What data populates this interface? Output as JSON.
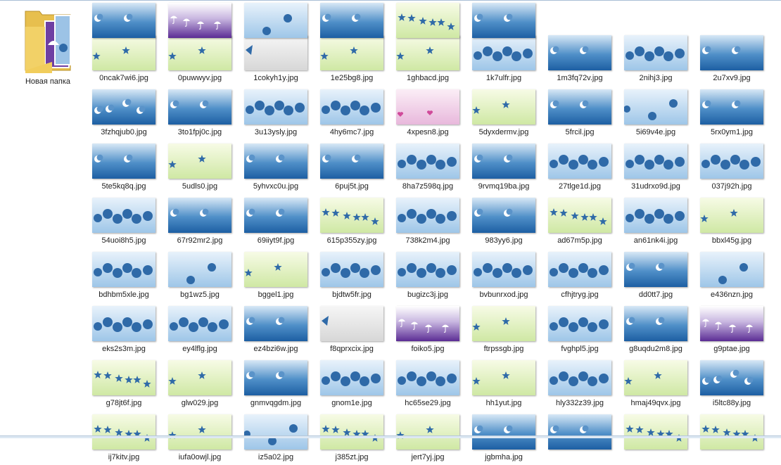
{
  "folder": {
    "label": "Новая папка",
    "icon": "folder-icon"
  },
  "colors": {
    "shape_blue": "#2f6aa8",
    "white": "#ffffff",
    "green_bg": "#cfe8a4",
    "light_blue_bg": "#9ec6e8",
    "dark_blue_bg": "#1d5fa3",
    "purple_bg": "#5b2d94",
    "pink_bg": "#e8b8dc",
    "gray_bg": "#d7d7d7",
    "pink_heart": "#d04a9a"
  },
  "files": [
    {
      "name": "0ncak7wi6.jpg",
      "bg": "green",
      "motif": "stars2"
    },
    {
      "name": "0puwwyv.jpg",
      "bg": "green",
      "motif": "stars2"
    },
    {
      "name": "1cokyh1y.jpg",
      "bg": "gray",
      "motif": "triangle"
    },
    {
      "name": "1e25bg8.jpg",
      "bg": "green",
      "motif": "stars2"
    },
    {
      "name": "1ghbacd.jpg",
      "bg": "green",
      "motif": "stars2"
    },
    {
      "name": "1k7ulfr.jpg",
      "bg": "lightblue",
      "motif": "circles"
    },
    {
      "name": "1m3fq72v.jpg",
      "bg": "darkblue",
      "motif": "moons2"
    },
    {
      "name": "2nihj3.jpg",
      "bg": "lightblue",
      "motif": "circles"
    },
    {
      "name": "2u7xv9.jpg",
      "bg": "darkblue",
      "motif": "moons2"
    },
    {
      "name": "3fzhqjub0.jpg",
      "bg": "darkblue",
      "motif": "moons4"
    },
    {
      "name": "3to1fpj0c.jpg",
      "bg": "darkblue",
      "motif": "moons2"
    },
    {
      "name": "3u13ysly.jpg",
      "bg": "lightblue",
      "motif": "circles"
    },
    {
      "name": "4hy6mc7.jpg",
      "bg": "lightblue",
      "motif": "circles"
    },
    {
      "name": "4xpesn8.jpg",
      "bg": "pink",
      "motif": "hearts"
    },
    {
      "name": "5dyxdermv.jpg",
      "bg": "green",
      "motif": "stars2"
    },
    {
      "name": "5frcil.jpg",
      "bg": "darkblue",
      "motif": "moons2"
    },
    {
      "name": "5i69v4e.jpg",
      "bg": "lightblue",
      "motif": "circles3"
    },
    {
      "name": "5rx0ym1.jpg",
      "bg": "darkblue",
      "motif": "moons2"
    },
    {
      "name": "5te5kq8q.jpg",
      "bg": "darkblue",
      "motif": "moons2"
    },
    {
      "name": "5udls0.jpg",
      "bg": "green",
      "motif": "stars2"
    },
    {
      "name": "5yhvxc0u.jpg",
      "bg": "darkblue",
      "motif": "moons2"
    },
    {
      "name": "6puj5t.jpg",
      "bg": "darkblue",
      "motif": "moons2"
    },
    {
      "name": "8ha7z598q.jpg",
      "bg": "lightblue",
      "motif": "circles"
    },
    {
      "name": "9rvmq19ba.jpg",
      "bg": "darkblue",
      "motif": "moons2"
    },
    {
      "name": "27tlge1d.jpg",
      "bg": "lightblue",
      "motif": "circles"
    },
    {
      "name": "31udrxo9d.jpg",
      "bg": "lightblue",
      "motif": "circles"
    },
    {
      "name": "037j92h.jpg",
      "bg": "lightblue",
      "motif": "circles"
    },
    {
      "name": "54uoi8h5.jpg",
      "bg": "lightblue",
      "motif": "circles"
    },
    {
      "name": "67r92mr2.jpg",
      "bg": "darkblue",
      "motif": "moons2"
    },
    {
      "name": "69iiyt9f.jpg",
      "bg": "darkblue",
      "motif": "moons2"
    },
    {
      "name": "615p355zy.jpg",
      "bg": "green",
      "motif": "stars6"
    },
    {
      "name": "738k2m4.jpg",
      "bg": "lightblue",
      "motif": "circles"
    },
    {
      "name": "983yy6.jpg",
      "bg": "darkblue",
      "motif": "moons2"
    },
    {
      "name": "ad67m5p.jpg",
      "bg": "green",
      "motif": "stars6"
    },
    {
      "name": "an61nk4i.jpg",
      "bg": "lightblue",
      "motif": "circles"
    },
    {
      "name": "bbxl45g.jpg",
      "bg": "green",
      "motif": "stars2"
    },
    {
      "name": "bdhbm5xle.jpg",
      "bg": "lightblue",
      "motif": "circles"
    },
    {
      "name": "bg1wz5.jpg",
      "bg": "lightblue",
      "motif": "circles2"
    },
    {
      "name": "bggel1.jpg",
      "bg": "green",
      "motif": "stars2"
    },
    {
      "name": "bjdtw5fr.jpg",
      "bg": "lightblue",
      "motif": "circles"
    },
    {
      "name": "bugizc3j.jpg",
      "bg": "lightblue",
      "motif": "circles"
    },
    {
      "name": "bvbunrxod.jpg",
      "bg": "lightblue",
      "motif": "circles"
    },
    {
      "name": "cfhjtryg.jpg",
      "bg": "lightblue",
      "motif": "circles"
    },
    {
      "name": "dd0tt7.jpg",
      "bg": "darkblue",
      "motif": "moons2"
    },
    {
      "name": "e436nzn.jpg",
      "bg": "lightblue",
      "motif": "circles2"
    },
    {
      "name": "eks2s3m.jpg",
      "bg": "lightblue",
      "motif": "circles"
    },
    {
      "name": "ey4lflg.jpg",
      "bg": "lightblue",
      "motif": "circles"
    },
    {
      "name": "ez4bzi6w.jpg",
      "bg": "darkblue",
      "motif": "moons2"
    },
    {
      "name": "f8qprxcix.jpg",
      "bg": "gray",
      "motif": "triangle"
    },
    {
      "name": "foiko5.jpg",
      "bg": "purple",
      "motif": "umbrellas"
    },
    {
      "name": "ftrpssgb.jpg",
      "bg": "green",
      "motif": "stars2"
    },
    {
      "name": "fvghpl5.jpg",
      "bg": "lightblue",
      "motif": "circles"
    },
    {
      "name": "g8uqdu2m8.jpg",
      "bg": "darkblue",
      "motif": "moons2"
    },
    {
      "name": "g9ptae.jpg",
      "bg": "purple",
      "motif": "umbrellas"
    },
    {
      "name": "g78jt6f.jpg",
      "bg": "green",
      "motif": "stars6"
    },
    {
      "name": "glw029.jpg",
      "bg": "green",
      "motif": "stars2"
    },
    {
      "name": "gnmvqgdm.jpg",
      "bg": "darkblue",
      "motif": "moons2"
    },
    {
      "name": "gnom1e.jpg",
      "bg": "lightblue",
      "motif": "circles"
    },
    {
      "name": "hc65se29.jpg",
      "bg": "lightblue",
      "motif": "circles"
    },
    {
      "name": "hh1yut.jpg",
      "bg": "green",
      "motif": "stars2"
    },
    {
      "name": "hly332z39.jpg",
      "bg": "lightblue",
      "motif": "circles"
    },
    {
      "name": "hmaj49qvx.jpg",
      "bg": "green",
      "motif": "stars2"
    },
    {
      "name": "i5ltc88y.jpg",
      "bg": "darkblue",
      "motif": "moons4"
    },
    {
      "name": "ij7kitv.jpg",
      "bg": "green",
      "motif": "stars6"
    },
    {
      "name": "iufa0owjl.jpg",
      "bg": "green",
      "motif": "stars2"
    },
    {
      "name": "iz5a02.jpg",
      "bg": "lightblue",
      "motif": "circles3"
    },
    {
      "name": "j385zt.jpg",
      "bg": "green",
      "motif": "stars6"
    },
    {
      "name": "jert7yj.jpg",
      "bg": "green",
      "motif": "stars2"
    },
    {
      "name": "jgbmha.jpg",
      "bg": "darkblue",
      "motif": "moons2"
    },
    {
      "name": "",
      "bg": "darkblue",
      "motif": "moons2"
    },
    {
      "name": "",
      "bg": "green",
      "motif": "stars6"
    },
    {
      "name": "",
      "bg": "green",
      "motif": "stars6"
    },
    {
      "name": "",
      "bg": "darkblue",
      "motif": "moons2"
    },
    {
      "name": "",
      "bg": "purple",
      "motif": "umbrellas"
    },
    {
      "name": "",
      "bg": "lightblue",
      "motif": "circles2"
    },
    {
      "name": "",
      "bg": "darkblue",
      "motif": "moons2"
    },
    {
      "name": "",
      "bg": "green",
      "motif": "stars6"
    },
    {
      "name": "",
      "bg": "darkblue",
      "motif": "moons2"
    }
  ]
}
